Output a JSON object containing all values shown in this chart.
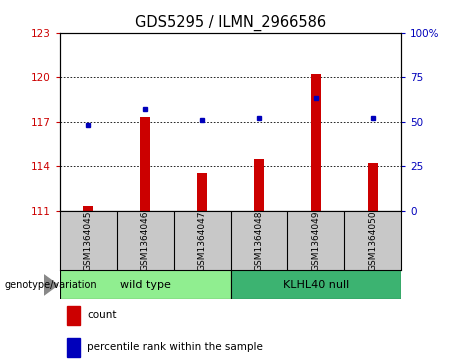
{
  "title": "GDS5295 / ILMN_2966586",
  "samples": [
    "GSM1364045",
    "GSM1364046",
    "GSM1364047",
    "GSM1364048",
    "GSM1364049",
    "GSM1364050"
  ],
  "counts": [
    111.3,
    117.3,
    113.55,
    114.45,
    120.2,
    114.2
  ],
  "percentile_ranks": [
    48,
    57,
    51,
    52,
    63,
    52
  ],
  "ylim_left": [
    111,
    123
  ],
  "ylim_right": [
    0,
    100
  ],
  "yticks_left": [
    111,
    114,
    117,
    120,
    123
  ],
  "yticks_right": [
    0,
    25,
    50,
    75,
    100
  ],
  "ybase": 111,
  "wt_color": "#90EE90",
  "kl_color": "#3CB371",
  "bar_color": "#CC0000",
  "dot_color": "#0000BB",
  "label_color_left": "#CC0000",
  "label_color_right": "#0000BB",
  "sample_bg": "#C8C8C8",
  "genotype_label": "genotype/variation",
  "legend_count_label": "count",
  "legend_pct_label": "percentile rank within the sample",
  "tick_fontsize": 7.5,
  "title_fontsize": 10.5,
  "sample_fontsize": 6.5,
  "geno_fontsize": 8,
  "legend_fontsize": 7.5
}
